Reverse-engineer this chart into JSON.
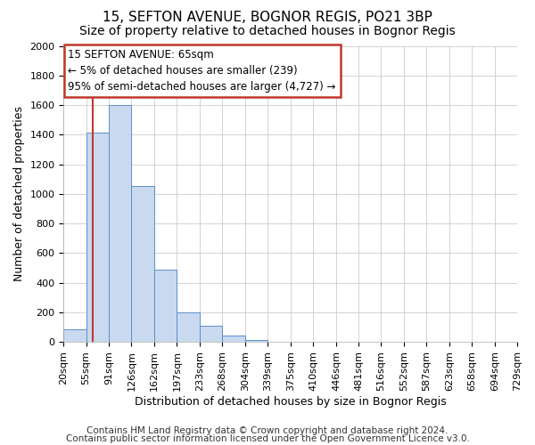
{
  "title": "15, SEFTON AVENUE, BOGNOR REGIS, PO21 3BP",
  "subtitle": "Size of property relative to detached houses in Bognor Regis",
  "xlabel": "Distribution of detached houses by size in Bognor Regis",
  "ylabel": "Number of detached properties",
  "bar_values": [
    85,
    1415,
    1600,
    1050,
    490,
    200,
    110,
    40,
    15,
    0,
    0,
    0,
    0,
    0,
    0,
    0,
    0,
    0,
    0,
    0
  ],
  "bin_labels": [
    "20sqm",
    "55sqm",
    "91sqm",
    "126sqm",
    "162sqm",
    "197sqm",
    "233sqm",
    "268sqm",
    "304sqm",
    "339sqm",
    "375sqm",
    "410sqm",
    "446sqm",
    "481sqm",
    "516sqm",
    "552sqm",
    "587sqm",
    "623sqm",
    "658sqm",
    "694sqm",
    "729sqm"
  ],
  "bin_edges": [
    20,
    55,
    91,
    126,
    162,
    197,
    233,
    268,
    304,
    339,
    375,
    410,
    446,
    481,
    516,
    552,
    587,
    623,
    658,
    694,
    729
  ],
  "ylim": [
    0,
    2000
  ],
  "yticks": [
    0,
    200,
    400,
    600,
    800,
    1000,
    1200,
    1400,
    1600,
    1800,
    2000
  ],
  "bar_color": "#c9d9f0",
  "bar_edge_color": "#5b8fc9",
  "red_line_x": 65,
  "annotation_title": "15 SEFTON AVENUE: 65sqm",
  "annotation_line1": "← 5% of detached houses are smaller (239)",
  "annotation_line2": "95% of semi-detached houses are larger (4,727) →",
  "annotation_box_color": "#ffffff",
  "annotation_border_color": "#c0392b",
  "footer1": "Contains HM Land Registry data © Crown copyright and database right 2024.",
  "footer2": "Contains public sector information licensed under the Open Government Licence v3.0.",
  "bg_color": "#ffffff",
  "plot_bg_color": "#ffffff",
  "grid_color": "#cccccc",
  "title_fontsize": 11,
  "subtitle_fontsize": 10,
  "axis_label_fontsize": 9,
  "tick_fontsize": 8,
  "footer_fontsize": 7.5
}
